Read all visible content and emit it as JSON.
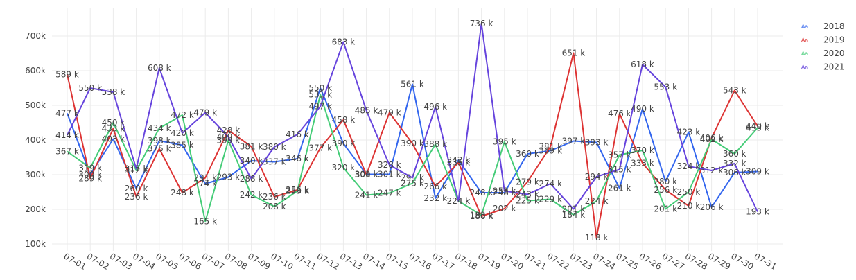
{
  "chart_data": {
    "type": "line",
    "title": "",
    "xlabel": "",
    "ylabel": "",
    "ylim": [
      80000,
      780000
    ],
    "y_ticks": [
      100000,
      200000,
      300000,
      400000,
      500000,
      600000,
      700000
    ],
    "y_tick_labels": [
      "100k",
      "200k",
      "300k",
      "400k",
      "500k",
      "600k",
      "700k"
    ],
    "legend_position": "top-right",
    "legend_marker_text": "Aa",
    "grid": true,
    "categories": [
      "07-01",
      "07-02",
      "07-03",
      "07-04",
      "07-05",
      "07-06",
      "07-07",
      "07-08",
      "07-09",
      "07-10",
      "07-11",
      "07-12",
      "07-13",
      "07-14",
      "07-15",
      "07-16",
      "07-17",
      "07-18",
      "07-19",
      "07-20",
      "07-21",
      "07-22",
      "07-23",
      "07-24",
      "07-25",
      "07-26",
      "07-27",
      "07-28",
      "07-29",
      "07-30",
      "07-31"
    ],
    "series": [
      {
        "name": "2018",
        "color": "#3366ee",
        "values": [
          477000,
          300000,
          403000,
          260000,
          398000,
          385000,
          274000,
          293000,
          340000,
          337000,
          346000,
          550000,
          390000,
          301000,
          301000,
          561000,
          232000,
          342000,
          248000,
          248000,
          360000,
          369000,
          397000,
          393000,
          261000,
          490000,
          280000,
          423000,
          206000,
          306000,
          309000
        ]
      },
      {
        "name": "2019",
        "color": "#dd3333",
        "values": [
          589000,
          289000,
          433000,
          236000,
          375000,
          248000,
          291000,
          428000,
          381000,
          236000,
          256000,
          377000,
          458000,
          300000,
          479000,
          390000,
          266000,
          335000,
          180000,
          202000,
          279000,
          381000,
          651000,
          118000,
          476000,
          333000,
          256000,
          210000,
          406000,
          543000,
          440000
        ]
      },
      {
        "name": "2020",
        "color": "#44cc77",
        "values": [
          367000,
          319000,
          450000,
          312000,
          434000,
          472000,
          165000,
          399000,
          242000,
          208000,
          253000,
          531000,
          320000,
          241000,
          247000,
          275000,
          388000,
          224000,
          183000,
          395000,
          225000,
          229000,
          184000,
          224000,
          357000,
          370000,
          201000,
          250000,
          402000,
          360000,
          435000
        ]
      },
      {
        "name": "2021",
        "color": "#6644dd",
        "values": [
          414000,
          550000,
          538000,
          317000,
          608000,
          420000,
          479000,
          409000,
          288000,
          380000,
          416000,
          497000,
          683000,
          485000,
          328000,
          291000,
          496000,
          224000,
          736000,
          253000,
          243000,
          274000,
          201000,
          294000,
          315000,
          618000,
          553000,
          324000,
          312000,
          332000,
          193000
        ]
      }
    ],
    "data_labels": [
      [
        "477 k",
        "300 k",
        "403 k",
        "260 k",
        "398 k",
        "385 k",
        "274 k",
        "293 k",
        "340 k",
        "337 k",
        "346 k",
        "550 k",
        "390 k",
        "301 k",
        "301 k",
        "561 k",
        "232 k",
        "342 k",
        "248 k",
        "248 k",
        "360 k",
        "369 k",
        "397 k",
        "393 k",
        "261 k",
        "490 k",
        "280 k",
        "423 k",
        "206 k",
        "306 k",
        "309 k"
      ],
      [
        "589 k",
        "289 k",
        "433 k",
        "236 k",
        "375 k",
        "248 k",
        "291 k",
        "428 k",
        "381 k",
        "236 k",
        "256 k",
        "377 k",
        "458 k",
        "300 k",
        "479 k",
        "390 k",
        "266 k",
        "335 k",
        "180 k",
        "202 k",
        "279 k",
        "381 k",
        "651 k",
        "118 k",
        "476 k",
        "333 k",
        "256 k",
        "210 k",
        "406 k",
        "543 k",
        "440 k"
      ],
      [
        "367 k",
        "319 k",
        "450 k",
        "312 k",
        "434 k",
        "472 k",
        "165 k",
        "399 k",
        "242 k",
        "208 k",
        "253 k",
        "531 k",
        "320 k",
        "241 k",
        "247 k",
        "275 k",
        "388 k",
        "224 k",
        "183 k",
        "395 k",
        "225 k",
        "229 k",
        "184 k",
        "224 k",
        "357 k",
        "370 k",
        "201 k",
        "250 k",
        "402 k",
        "360 k",
        "435 k"
      ],
      [
        "414 k",
        "550 k",
        "538 k",
        "317 k",
        "608 k",
        "420 k",
        "479 k",
        "409 k",
        "288 k",
        "380 k",
        "416 k",
        "497 k",
        "683 k",
        "485 k",
        "328 k",
        "291 k",
        "496 k",
        "224 k",
        "736 k",
        "253 k",
        "243 k",
        "274 k",
        "201 k",
        "294 k",
        "315 k",
        "618 k",
        "553 k",
        "324 k",
        "312 k",
        "332 k",
        "193 k"
      ]
    ]
  }
}
